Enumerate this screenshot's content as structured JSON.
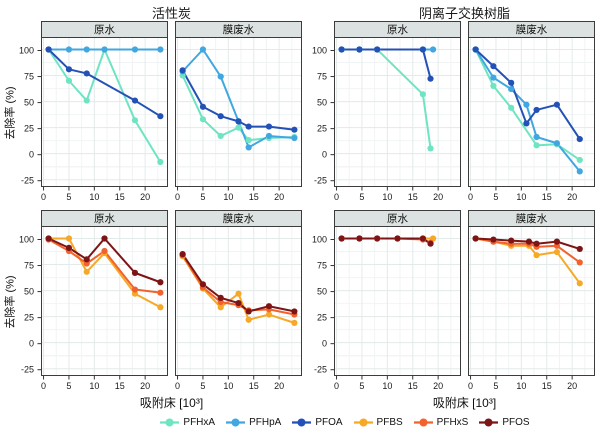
{
  "figure": {
    "group_titles": [
      "活性炭",
      "阴离子交换树脂"
    ],
    "ylabel": "去除率 (%)",
    "xlabel": "吸附床 [10³]"
  },
  "chart_data": {
    "type": "line",
    "title": "",
    "xlabel": "吸附床 [10³]",
    "ylabel": "去除率 (%)",
    "xlim": [
      -0.5,
      24.5
    ],
    "ylim": [
      -32,
      112
    ],
    "xticks": [
      0,
      5,
      10,
      15,
      20
    ],
    "yticks": [
      100,
      75,
      50,
      25,
      0,
      -25
    ],
    "grid": true,
    "legend_position": "bottom",
    "legend": [
      "PFHxA",
      "PFHpA",
      "PFOA",
      "PFBS",
      "PFHxS",
      "PFOS"
    ],
    "colors": {
      "PFHxA": "#6FE4C2",
      "PFHpA": "#41A7E0",
      "PFOA": "#2351B5",
      "PFBS": "#F6A827",
      "PFHxS": "#F2622C",
      "PFOS": "#7D1416"
    },
    "panels": [
      {
        "group": "活性炭",
        "group_id": "activated-carbon",
        "facet": "原水",
        "facet_id": "raw-water",
        "row": 0,
        "series": [
          {
            "name": "PFHxA",
            "x": [
              1,
              5,
              8.5,
              12,
              18,
              23
            ],
            "y": [
              100,
              70,
              51,
              100,
              32,
              -8
            ]
          },
          {
            "name": "PFHpA",
            "x": [
              1,
              5,
              8.5,
              12,
              18,
              23
            ],
            "y": [
              100,
              100,
              100,
              100,
              100,
              100
            ]
          },
          {
            "name": "PFOA",
            "x": [
              1,
              5,
              8.5,
              18,
              23
            ],
            "y": [
              100,
              81,
              77,
              51,
              36
            ]
          }
        ]
      },
      {
        "group": "活性炭",
        "group_id": "activated-carbon",
        "facet": "膜废水",
        "facet_id": "membrane-wastewater",
        "row": 0,
        "series": [
          {
            "name": "PFHxA",
            "x": [
              1,
              5,
              8.5,
              12,
              14,
              18,
              23
            ],
            "y": [
              75,
              33,
              17,
              25,
              13,
              15,
              16
            ]
          },
          {
            "name": "PFHpA",
            "x": [
              1,
              5,
              8.5,
              12,
              14,
              18,
              23
            ],
            "y": [
              79,
              100,
              74,
              31,
              6,
              17,
              15
            ]
          },
          {
            "name": "PFOA",
            "x": [
              1,
              5,
              8.5,
              12,
              14,
              18,
              23
            ],
            "y": [
              80,
              45,
              36,
              31,
              26,
              26,
              23
            ]
          }
        ]
      },
      {
        "group": "阴离子交换树脂",
        "group_id": "anion-exchange-resin",
        "facet": "原水",
        "facet_id": "raw-water",
        "row": 0,
        "series": [
          {
            "name": "PFHxA",
            "x": [
              1,
              4.5,
              8,
              17,
              18.5
            ],
            "y": [
              100,
              100,
              100,
              57,
              5
            ]
          },
          {
            "name": "PFHpA",
            "x": [
              1,
              4.5,
              8,
              17,
              19
            ],
            "y": [
              100,
              100,
              100,
              100,
              100
            ]
          },
          {
            "name": "PFOA",
            "x": [
              1,
              4.5,
              8,
              17,
              18.5
            ],
            "y": [
              100,
              100,
              100,
              100,
              72
            ]
          }
        ]
      },
      {
        "group": "阴离子交换树脂",
        "group_id": "anion-exchange-resin",
        "facet": "膜废水",
        "facet_id": "membrane-wastewater",
        "row": 0,
        "series": [
          {
            "name": "PFHxA",
            "x": [
              1,
              4.5,
              8,
              13,
              17,
              21.5
            ],
            "y": [
              100,
              65,
              44,
              8,
              9,
              -6
            ]
          },
          {
            "name": "PFHpA",
            "x": [
              1,
              4.5,
              8,
              11,
              13,
              17,
              21.5
            ],
            "y": [
              100,
              73,
              62,
              47,
              16,
              10,
              -17
            ]
          },
          {
            "name": "PFOA",
            "x": [
              1,
              4.5,
              8,
              11,
              13,
              17,
              21.5
            ],
            "y": [
              100,
              84,
              68,
              29,
              42,
              47,
              14
            ]
          }
        ]
      },
      {
        "group": "活性炭",
        "group_id": "activated-carbon",
        "facet": "原水",
        "facet_id": "raw-water",
        "row": 1,
        "series": [
          {
            "name": "PFBS",
            "x": [
              1,
              5,
              8.5,
              12,
              18,
              23
            ],
            "y": [
              100,
              100,
              68,
              86,
              47,
              34
            ]
          },
          {
            "name": "PFHxS",
            "x": [
              1,
              5,
              8.5,
              12,
              18,
              23
            ],
            "y": [
              99,
              88,
              76,
              88,
              51,
              48
            ]
          },
          {
            "name": "PFOS",
            "x": [
              1,
              5,
              8.5,
              12,
              18,
              23
            ],
            "y": [
              100,
              91,
              80,
              100,
              67,
              58
            ]
          }
        ]
      },
      {
        "group": "活性炭",
        "group_id": "activated-carbon",
        "facet": "膜废水",
        "facet_id": "membrane-wastewater",
        "row": 1,
        "series": [
          {
            "name": "PFBS",
            "x": [
              1,
              5,
              8.5,
              12,
              14,
              18,
              23
            ],
            "y": [
              83,
              52,
              34,
              47,
              22,
              27,
              19
            ]
          },
          {
            "name": "PFHxS",
            "x": [
              1,
              5,
              8.5,
              12,
              14,
              18,
              23
            ],
            "y": [
              84,
              53,
              39,
              36,
              31,
              32,
              27
            ]
          },
          {
            "name": "PFOS",
            "x": [
              1,
              5,
              8.5,
              12,
              14,
              18,
              23
            ],
            "y": [
              85,
              56,
              43,
              38,
              30,
              35,
              30
            ]
          }
        ]
      },
      {
        "group": "阴离子交换树脂",
        "group_id": "anion-exchange-resin",
        "facet": "原水",
        "facet_id": "raw-water",
        "row": 1,
        "series": [
          {
            "name": "PFBS",
            "x": [
              1,
              4.5,
              8,
              12,
              17,
              19
            ],
            "y": [
              100,
              100,
              100,
              100,
              100,
              100
            ]
          },
          {
            "name": "PFHxS",
            "x": [
              1,
              4.5,
              8,
              12,
              17,
              18.5
            ],
            "y": [
              100,
              100,
              100,
              100,
              99,
              96
            ]
          },
          {
            "name": "PFOS",
            "x": [
              1,
              4.5,
              8,
              12,
              17,
              18.5
            ],
            "y": [
              100,
              100,
              100,
              100,
              100,
              95
            ]
          }
        ]
      },
      {
        "group": "阴离子交换树脂",
        "group_id": "anion-exchange-resin",
        "facet": "膜废水",
        "facet_id": "membrane-wastewater",
        "row": 1,
        "series": [
          {
            "name": "PFBS",
            "x": [
              1,
              4.5,
              8,
              11.5,
              13,
              17,
              21.5
            ],
            "y": [
              100,
              97,
              93,
              93,
              84,
              87,
              57
            ]
          },
          {
            "name": "PFHxS",
            "x": [
              1,
              4.5,
              8,
              11.5,
              13,
              17,
              21.5
            ],
            "y": [
              100,
              97,
              95,
              95,
              92,
              93,
              77
            ]
          },
          {
            "name": "PFOS",
            "x": [
              1,
              4.5,
              8,
              11.5,
              13,
              17,
              21.5
            ],
            "y": [
              100,
              99,
              98,
              97,
              95,
              97,
              90
            ]
          }
        ]
      }
    ]
  }
}
